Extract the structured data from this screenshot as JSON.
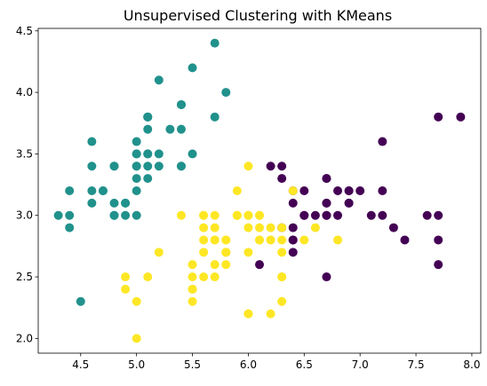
{
  "chart_data": {
    "type": "scatter",
    "title": "Unsupervised Clustering with KMeans",
    "xlabel": "",
    "ylabel": "",
    "xlim": [
      4.12,
      8.08
    ],
    "ylim": [
      1.88,
      4.52
    ],
    "xticks": [
      4.5,
      5.0,
      5.5,
      6.0,
      6.5,
      7.0,
      7.5,
      8.0
    ],
    "xtick_labels": [
      "4.5",
      "5.0",
      "5.5",
      "6.0",
      "6.5",
      "7.0",
      "7.5",
      "8.0"
    ],
    "yticks": [
      2.0,
      2.5,
      3.0,
      3.5,
      4.0,
      4.5
    ],
    "ytick_labels": [
      "2.0",
      "2.5",
      "3.0",
      "3.5",
      "4.0",
      "4.5"
    ],
    "grid": false,
    "series": [
      {
        "color": "#21918c",
        "x": [
          5.1,
          4.9,
          4.7,
          4.6,
          5.0,
          5.4,
          4.6,
          5.0,
          4.4,
          4.9,
          5.4,
          4.8,
          4.8,
          4.3,
          5.8,
          5.7,
          5.4,
          5.1,
          5.7,
          5.1,
          5.4,
          5.1,
          4.6,
          5.1,
          4.8,
          5.0,
          5.0,
          5.2,
          5.2,
          4.7,
          4.8,
          5.4,
          5.2,
          5.5,
          4.9,
          5.0,
          5.5,
          4.4,
          5.1,
          5.0,
          4.5,
          4.4,
          5.0,
          5.1,
          4.8,
          5.1,
          4.6,
          5.3,
          5.0
        ],
        "y": [
          3.5,
          3.0,
          3.2,
          3.1,
          3.6,
          3.9,
          3.4,
          3.4,
          2.9,
          3.1,
          3.7,
          3.4,
          3.0,
          3.0,
          4.0,
          4.4,
          3.9,
          3.5,
          3.8,
          3.8,
          3.4,
          3.7,
          3.6,
          3.3,
          3.4,
          3.0,
          3.4,
          3.5,
          3.4,
          3.2,
          3.1,
          3.4,
          4.1,
          4.2,
          3.1,
          3.2,
          3.5,
          3.0,
          3.4,
          3.5,
          2.3,
          3.2,
          3.5,
          3.8,
          3.0,
          3.8,
          3.2,
          3.7,
          3.3
        ]
      },
      {
        "color": "#440154",
        "x": [
          7.0,
          6.9,
          6.7,
          7.1,
          6.3,
          6.5,
          7.6,
          7.3,
          6.7,
          7.2,
          6.5,
          6.4,
          6.8,
          6.4,
          6.5,
          7.7,
          7.7,
          6.9,
          7.7,
          6.7,
          7.2,
          6.4,
          7.2,
          7.4,
          7.9,
          6.4,
          7.7,
          6.3,
          6.4,
          6.9,
          6.7,
          6.9,
          6.8,
          6.7,
          6.7,
          6.2,
          6.1,
          6.3,
          6.4,
          6.6,
          6.7
        ],
        "y": [
          3.2,
          3.1,
          3.0,
          3.0,
          3.3,
          3.0,
          3.0,
          2.9,
          2.5,
          3.6,
          3.2,
          2.7,
          3.0,
          3.2,
          3.0,
          3.8,
          2.6,
          3.2,
          2.8,
          3.3,
          3.2,
          2.8,
          3.0,
          2.8,
          3.8,
          2.8,
          3.0,
          3.4,
          3.1,
          3.1,
          3.1,
          3.2,
          3.2,
          3.3,
          3.0,
          3.4,
          2.6,
          2.9,
          2.9,
          3.0,
          3.1
        ]
      },
      {
        "color": "#fde725",
        "x": [
          6.4,
          5.5,
          5.7,
          4.9,
          5.2,
          5.0,
          5.9,
          6.0,
          6.1,
          5.6,
          5.6,
          5.8,
          6.2,
          5.6,
          5.9,
          6.1,
          6.3,
          6.1,
          6.6,
          6.8,
          6.0,
          5.7,
          5.5,
          5.5,
          5.8,
          6.0,
          5.4,
          6.0,
          6.3,
          5.6,
          5.5,
          5.5,
          6.1,
          5.8,
          5.0,
          5.6,
          5.7,
          5.7,
          6.2,
          5.1,
          5.7,
          5.8,
          4.9,
          5.7,
          5.8,
          6.3,
          6.0,
          6.2,
          6.3,
          6.1,
          6.3,
          6.0,
          5.8,
          6.3,
          5.9,
          5.6,
          5.9,
          6.5,
          6.2,
          6.0
        ],
        "y": [
          3.2,
          2.3,
          2.8,
          2.4,
          2.7,
          2.0,
          3.0,
          2.2,
          2.9,
          2.9,
          3.0,
          2.7,
          2.2,
          2.5,
          3.2,
          2.8,
          2.5,
          2.8,
          2.9,
          2.8,
          2.9,
          2.6,
          2.4,
          2.4,
          2.7,
          2.7,
          3.0,
          3.4,
          2.3,
          3.0,
          2.5,
          2.6,
          3.0,
          2.6,
          2.3,
          2.7,
          3.0,
          2.9,
          2.9,
          2.5,
          2.8,
          2.7,
          2.5,
          2.5,
          2.8,
          2.7,
          3.0,
          2.8,
          2.8,
          3.0,
          2.5,
          2.2,
          2.8,
          2.9,
          3.0,
          2.8,
          3.0,
          2.8,
          2.8,
          3.0
        ]
      }
    ]
  }
}
